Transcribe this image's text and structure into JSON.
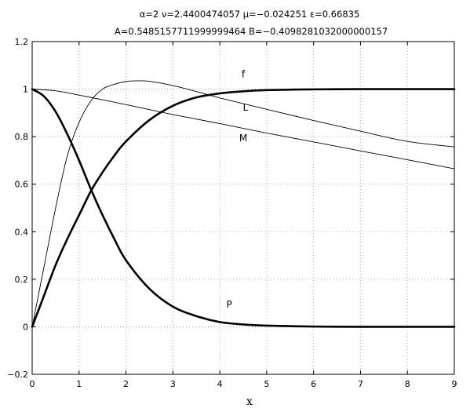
{
  "chart_data": {
    "type": "line",
    "title_line1": "α=2   ν=2.4400474057   μ=−0.024251   ε=0.66835",
    "title_line2": "A=0.5485157711999999464   B=−0.4098281032000000157",
    "xlabel": "x",
    "ylabel": "",
    "xlim": [
      0,
      9
    ],
    "ylim": [
      -0.2,
      1.2
    ],
    "x_ticks": [
      0,
      1,
      2,
      3,
      4,
      5,
      6,
      7,
      8,
      9
    ],
    "y_ticks": [
      -0.2,
      0,
      0.2,
      0.4,
      0.6,
      0.8,
      1,
      1.2
    ],
    "x_tick_labels": [
      "0",
      "1",
      "2",
      "3",
      "4",
      "5",
      "6",
      "7",
      "8",
      "9"
    ],
    "y_tick_labels": [
      "−0.2",
      "0",
      "0.2",
      "0.4",
      "0.6",
      "0.8",
      "1",
      "1.2"
    ],
    "grid": true,
    "series": [
      {
        "name": "f",
        "style": "thick",
        "label_at": [
          4.5,
          1.05
        ],
        "x": [
          0,
          0.25,
          0.5,
          0.75,
          1,
          1.25,
          1.5,
          1.75,
          2,
          2.5,
          3,
          3.5,
          4,
          4.5,
          5,
          6,
          7,
          8,
          9
        ],
        "y": [
          0,
          0.13,
          0.26,
          0.37,
          0.47,
          0.57,
          0.65,
          0.72,
          0.78,
          0.87,
          0.93,
          0.965,
          0.982,
          0.991,
          0.996,
          0.999,
          1.0,
          1.0,
          1.0
        ]
      },
      {
        "name": "L",
        "style": "thin",
        "label_at": [
          4.55,
          0.91
        ],
        "x": [
          0,
          0.25,
          0.5,
          0.75,
          1,
          1.25,
          1.5,
          1.75,
          2,
          2.25,
          2.5,
          3,
          3.5,
          4,
          5,
          6,
          7,
          8,
          9
        ],
        "y": [
          0,
          0.25,
          0.5,
          0.72,
          0.86,
          0.95,
          1.0,
          1.02,
          1.032,
          1.035,
          1.033,
          1.015,
          0.99,
          0.963,
          0.915,
          0.868,
          0.823,
          0.78,
          0.757
        ]
      },
      {
        "name": "M",
        "style": "thin",
        "label_at": [
          4.5,
          0.78
        ],
        "x": [
          0,
          0.5,
          1,
          2,
          3,
          4,
          5,
          6,
          7,
          8,
          9
        ],
        "y": [
          1.0,
          0.993,
          0.975,
          0.935,
          0.893,
          0.855,
          0.815,
          0.778,
          0.74,
          0.703,
          0.665
        ]
      },
      {
        "name": "P",
        "style": "thick",
        "label_at": [
          4.2,
          0.08
        ],
        "x": [
          0,
          0.25,
          0.5,
          0.75,
          1,
          1.25,
          1.5,
          1.75,
          2,
          2.5,
          3,
          3.5,
          4,
          4.5,
          5,
          6,
          7,
          8,
          9
        ],
        "y": [
          1.0,
          0.97,
          0.905,
          0.81,
          0.7,
          0.58,
          0.47,
          0.37,
          0.28,
          0.16,
          0.085,
          0.045,
          0.02,
          0.01,
          0.005,
          0.001,
          0.0,
          0.0,
          0.0
        ]
      }
    ]
  }
}
